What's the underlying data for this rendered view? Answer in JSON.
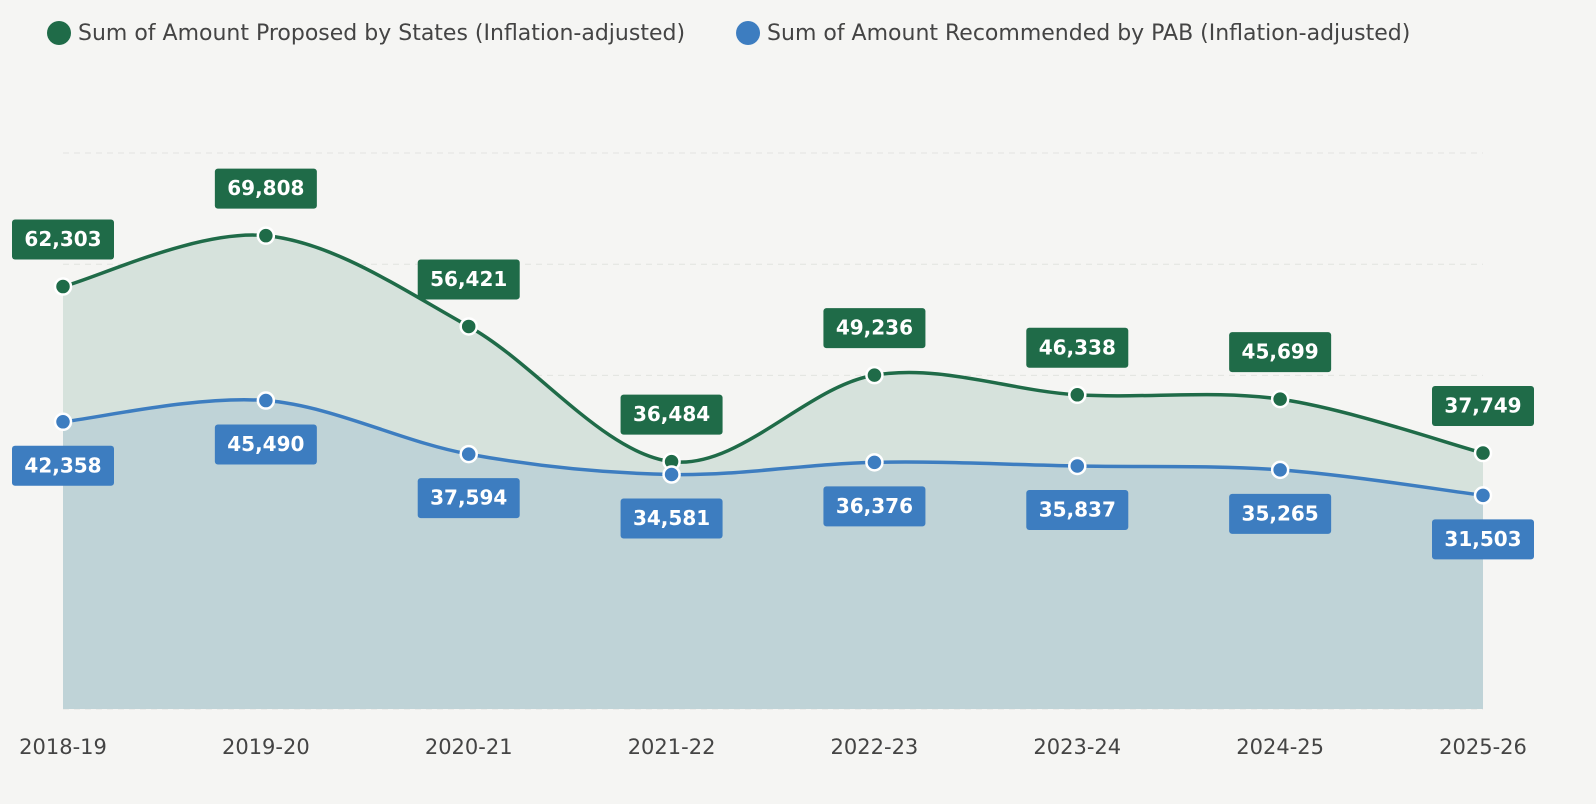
{
  "chart_data": {
    "type": "area",
    "categories": [
      "2018-19",
      "2019-20",
      "2020-21",
      "2021-22",
      "2022-23",
      "2023-24",
      "2024-25",
      "2025-26"
    ],
    "series": [
      {
        "name": "Sum of Amount Proposed by States (Inflation-adjusted)",
        "color": "#1f6b48",
        "values": [
          62303,
          69808,
          56421,
          36484,
          49236,
          46338,
          45699,
          37749
        ],
        "value_labels": [
          "62,303",
          "69,808",
          "56,421",
          "36,484",
          "49,236",
          "46,338",
          "45,699",
          "37,749"
        ]
      },
      {
        "name": "Sum of Amount Recommended by PAB (Inflation-adjusted)",
        "color": "#3d7dc0",
        "values": [
          42358,
          45490,
          37594,
          34581,
          36376,
          35837,
          35265,
          31503
        ],
        "value_labels": [
          "42,358",
          "45,490",
          "37,594",
          "34,581",
          "36,376",
          "35,837",
          "35,265",
          "31,503"
        ]
      }
    ],
    "ylim": [
      0,
      82000
    ],
    "yticks": [
      0,
      16400,
      32800,
      49200,
      65600,
      82000
    ],
    "grid": true,
    "legend": "top"
  }
}
